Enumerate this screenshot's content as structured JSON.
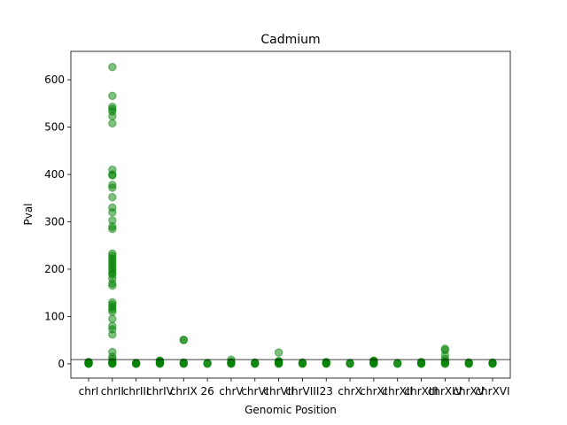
{
  "chart_data": {
    "type": "scatter",
    "title": "Cadmium",
    "xlabel": "Genomic Position",
    "ylabel": "Pval",
    "ylim": [
      -30,
      660
    ],
    "yticks": [
      0,
      100,
      200,
      300,
      400,
      500,
      600
    ],
    "categories": [
      "chrI",
      "chrII",
      "chrIII",
      "chrIV",
      "chrIX",
      "26",
      "chrV",
      "chrVI",
      "chrVII",
      "chrVIII",
      "23",
      "chrX",
      "chrXI",
      "chrXII",
      "chrXIII",
      "chrXIV",
      "chrXV",
      "chrXVI"
    ],
    "threshold_line": 9,
    "point_color": "#008000",
    "point_alpha": 0.5,
    "series": [
      {
        "points": [
          {
            "category": "chrI",
            "values": [
              0,
              0.5,
              1,
              1.5,
              2,
              2.5,
              3,
              3.5,
              4
            ]
          },
          {
            "category": "chrII",
            "values": [
              627,
              566,
              543,
              538,
              533,
              523,
              508,
              410,
              400,
              398,
              378,
              372,
              352,
              330,
              320,
              303,
              290,
              285,
              233,
              228,
              222,
              218,
              212,
              207,
              202,
              197,
              192,
              188,
              180,
              170,
              165,
              130,
              125,
              120,
              115,
              110,
              95,
              80,
              73,
              62,
              25,
              15,
              10,
              5,
              3,
              2,
              1,
              0
            ]
          },
          {
            "category": "chrIII",
            "values": [
              0,
              0.5,
              1,
              1.5,
              2
            ]
          },
          {
            "category": "chrIV",
            "values": [
              0,
              1,
              2,
              3,
              4,
              5,
              6,
              7
            ]
          },
          {
            "category": "chrIX",
            "values": [
              51,
              50,
              0,
              1,
              2,
              3
            ]
          },
          {
            "category": "26",
            "values": [
              0,
              1,
              2
            ]
          },
          {
            "category": "chrV",
            "values": [
              9,
              0,
              1,
              2,
              3,
              4
            ]
          },
          {
            "category": "chrVI",
            "values": [
              0,
              1,
              2,
              3
            ]
          },
          {
            "category": "chrVII",
            "values": [
              24,
              0,
              1,
              2,
              3,
              4,
              5,
              6
            ]
          },
          {
            "category": "chrVIII",
            "values": [
              0,
              1,
              2,
              3
            ]
          },
          {
            "category": "23",
            "values": [
              0,
              1,
              2,
              3,
              4
            ]
          },
          {
            "category": "chrX",
            "values": [
              0,
              1,
              2
            ]
          },
          {
            "category": "chrXI",
            "values": [
              0,
              1,
              2,
              3,
              4,
              5,
              6,
              7
            ]
          },
          {
            "category": "chrXII",
            "values": [
              0,
              1,
              2
            ]
          },
          {
            "category": "chrXIII",
            "values": [
              0,
              1,
              2,
              3,
              4
            ]
          },
          {
            "category": "chrXIV",
            "values": [
              32,
              29,
              18,
              10,
              5,
              3,
              1,
              0
            ]
          },
          {
            "category": "chrXV",
            "values": [
              0,
              1,
              2,
              3
            ]
          },
          {
            "category": "chrXVI",
            "values": [
              0,
              1,
              2,
              3
            ]
          }
        ]
      }
    ]
  }
}
